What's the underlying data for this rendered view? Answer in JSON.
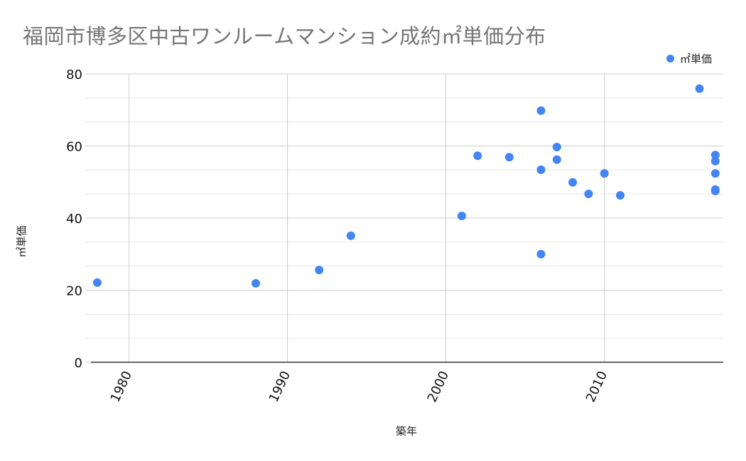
{
  "chart_data": {
    "type": "scatter",
    "title": "福岡市博多区中古ワンルームマンション成約㎡単価分布",
    "xlabel": "築年",
    "ylabel": "㎡単価",
    "xlim": [
      1977.6,
      2017.5
    ],
    "ylim": [
      0,
      80
    ],
    "x_ticks": [
      1980,
      1990,
      2000,
      2010
    ],
    "y_ticks": [
      0,
      20,
      40,
      60,
      80
    ],
    "grid": true,
    "legend_position": "top-right",
    "series": [
      {
        "name": "㎡単価",
        "color": "#4285f4",
        "points": [
          {
            "x": 1978,
            "y": 22.1
          },
          {
            "x": 1988,
            "y": 21.9
          },
          {
            "x": 1992,
            "y": 25.6
          },
          {
            "x": 1994,
            "y": 35.1
          },
          {
            "x": 2001,
            "y": 40.6
          },
          {
            "x": 2002,
            "y": 57.3
          },
          {
            "x": 2004,
            "y": 56.9
          },
          {
            "x": 2006,
            "y": 69.8
          },
          {
            "x": 2006,
            "y": 53.4
          },
          {
            "x": 2006,
            "y": 30.0
          },
          {
            "x": 2007,
            "y": 59.7
          },
          {
            "x": 2007,
            "y": 56.2
          },
          {
            "x": 2008,
            "y": 49.9
          },
          {
            "x": 2009,
            "y": 46.7
          },
          {
            "x": 2010,
            "y": 52.4
          },
          {
            "x": 2011,
            "y": 46.3
          },
          {
            "x": 2016,
            "y": 75.9
          },
          {
            "x": 2017,
            "y": 57.5
          },
          {
            "x": 2017,
            "y": 55.8
          },
          {
            "x": 2017,
            "y": 52.4
          },
          {
            "x": 2017,
            "y": 47.9
          },
          {
            "x": 2017,
            "y": 47.5
          }
        ]
      }
    ]
  },
  "legend": {
    "label": "㎡単価",
    "color": "#4285f4"
  }
}
